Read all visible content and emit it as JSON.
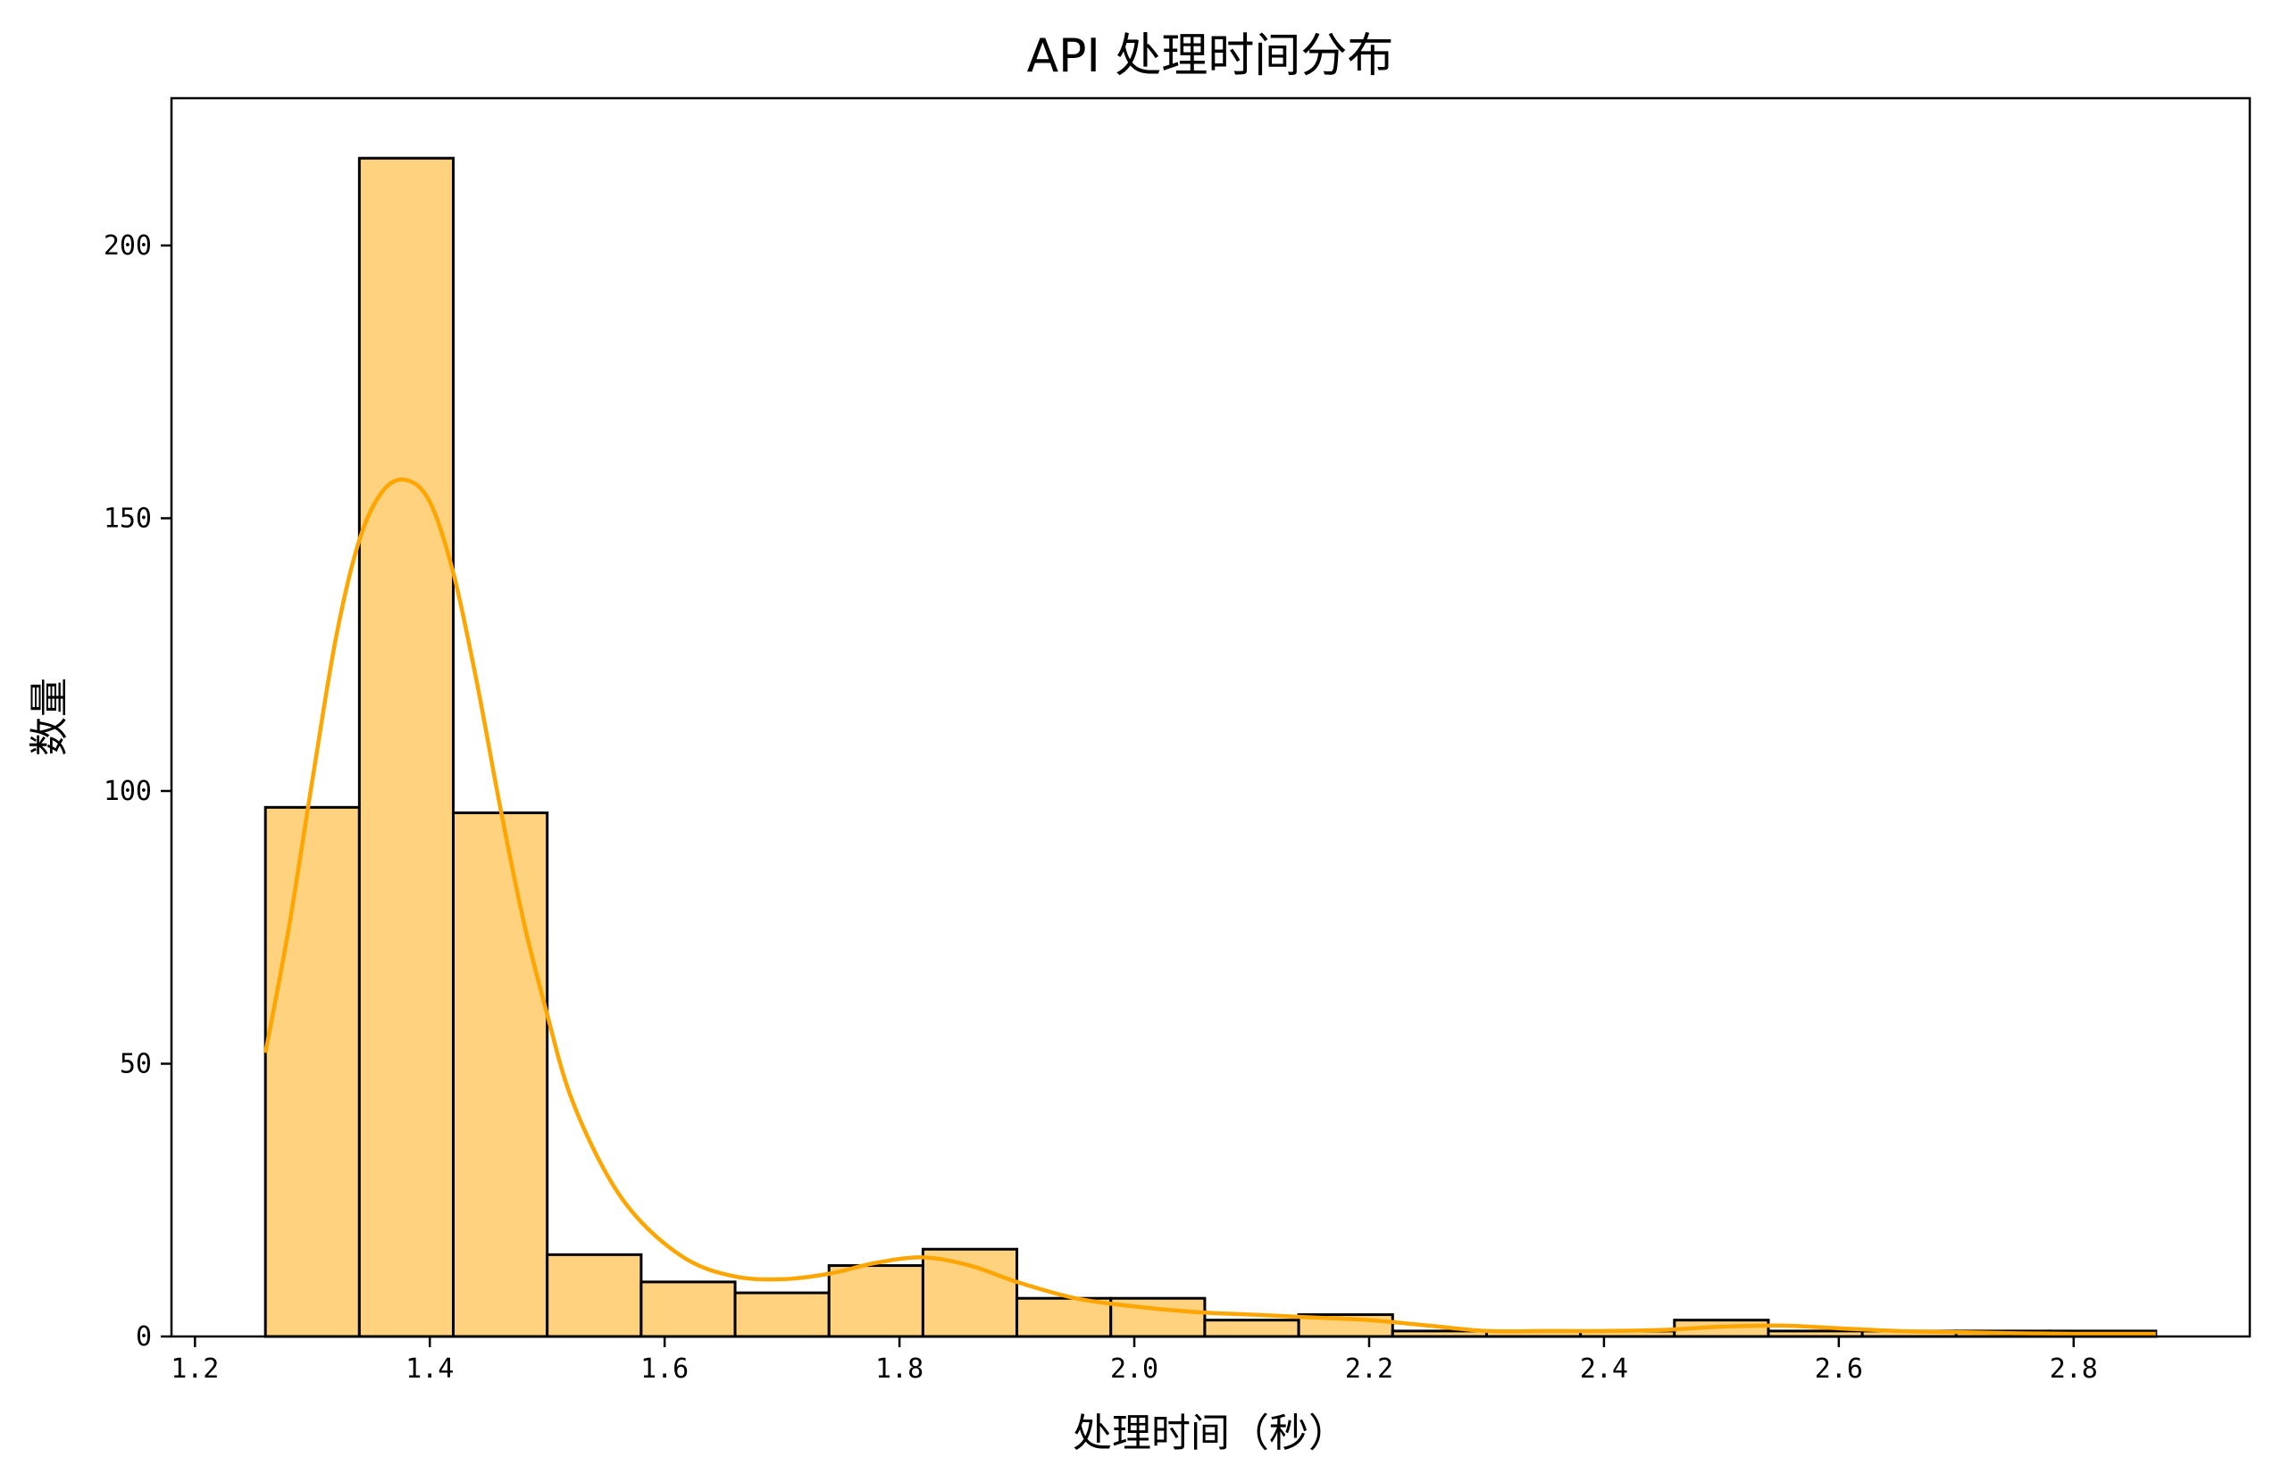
{
  "chart_data": {
    "type": "bar",
    "subtype": "histogram",
    "title": "API 处理时间分布",
    "xlabel": "处理时间（秒）",
    "ylabel": "数量",
    "xlim": [
      1.18,
      2.95
    ],
    "ylim": [
      0,
      227
    ],
    "xticks": [
      1.2,
      1.4,
      1.6,
      1.8,
      2.0,
      2.2,
      2.4,
      2.6,
      2.8
    ],
    "xtick_labels": [
      "1.2",
      "1.4",
      "1.6",
      "1.8",
      "2.0",
      "2.2",
      "2.4",
      "2.6",
      "2.8"
    ],
    "yticks": [
      0,
      50,
      100,
      150,
      200
    ],
    "ytick_labels": [
      "0",
      "50",
      "100",
      "150",
      "200"
    ],
    "bin_edges": [
      1.26,
      1.34,
      1.42,
      1.5,
      1.58,
      1.66,
      1.74,
      1.82,
      1.9,
      1.98,
      2.06,
      2.14,
      2.22,
      2.3,
      2.38,
      2.46,
      2.54,
      2.62,
      2.7,
      2.78,
      2.87
    ],
    "counts": [
      97,
      216,
      96,
      15,
      10,
      8,
      13,
      16,
      7,
      7,
      3,
      4,
      1,
      1,
      1,
      3,
      1,
      1,
      1,
      1
    ],
    "bar_color": "#ffd27f",
    "bar_edge_color": "#000000",
    "kde": {
      "color": "#ffa500",
      "x": [
        1.26,
        1.28,
        1.3,
        1.32,
        1.34,
        1.36,
        1.38,
        1.4,
        1.42,
        1.44,
        1.46,
        1.48,
        1.5,
        1.52,
        1.55,
        1.58,
        1.62,
        1.66,
        1.7,
        1.74,
        1.78,
        1.82,
        1.86,
        1.9,
        1.95,
        2.0,
        2.05,
        2.1,
        2.15,
        2.2,
        2.25,
        2.3,
        2.35,
        2.4,
        2.45,
        2.5,
        2.55,
        2.6,
        2.65,
        2.7,
        2.75,
        2.8,
        2.87
      ],
      "y": [
        52,
        75,
        102,
        128,
        146,
        155,
        157,
        153,
        140,
        120,
        97,
        76,
        59,
        44,
        30,
        21,
        14,
        11,
        10.5,
        11.5,
        13.5,
        14.5,
        13,
        10,
        7,
        5.5,
        4.5,
        4,
        3.5,
        3,
        2,
        1,
        1,
        1,
        1.2,
        1.8,
        2,
        1.5,
        1,
        0.8,
        0.6,
        0.5,
        0.5
      ]
    },
    "grid": false,
    "legend": "none"
  }
}
